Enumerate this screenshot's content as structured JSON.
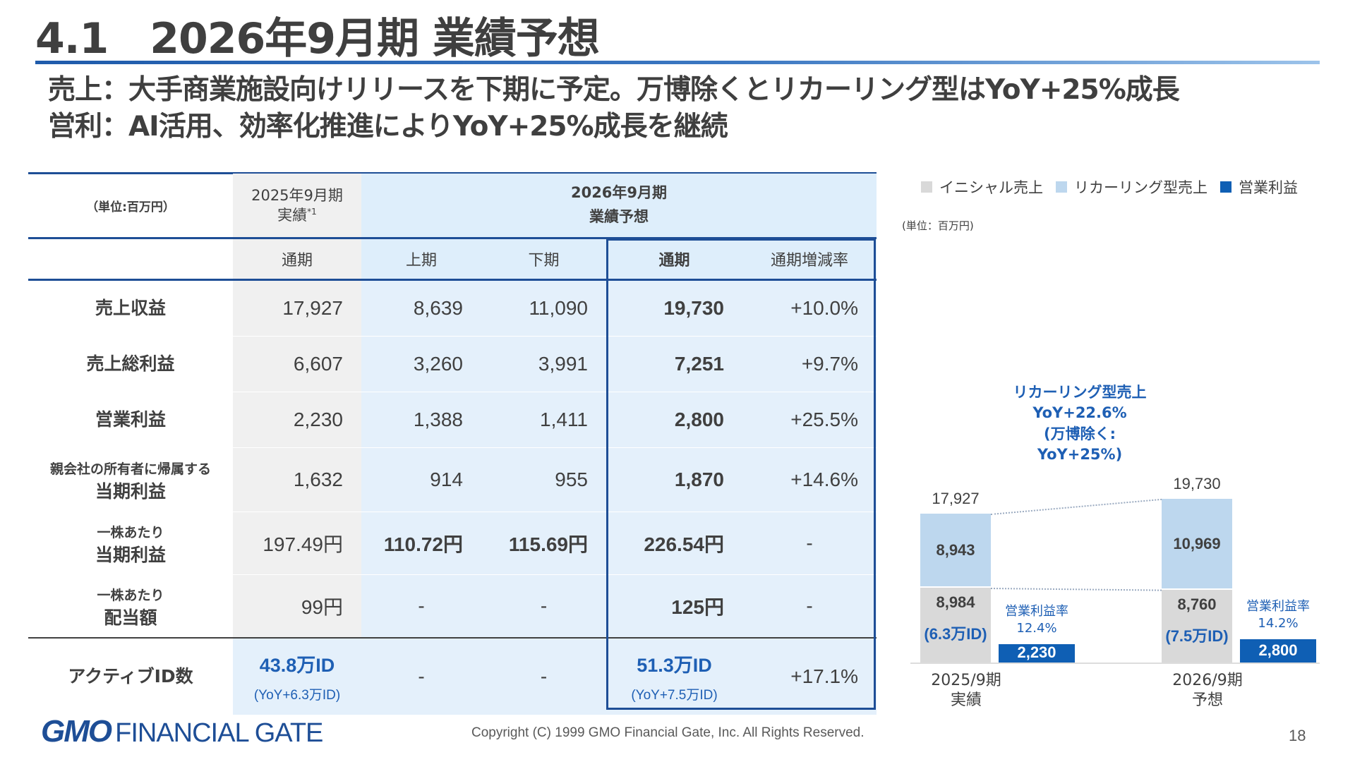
{
  "slide": {
    "title": "4.1　2026年9月期 業績予想",
    "subtitle_sales": "売上：大手商業施設向けリリースを下期に予定。万博除くとリカーリング型はYoY+25%成長",
    "subtitle_profit": "営利：AI活用、効率化推進によりYoY+25%成長を継続"
  },
  "table": {
    "unit_label": "（単位:百万円）",
    "prev_header_line1": "2025年9月期",
    "prev_header_line2": "実績",
    "prev_header_note": "*1",
    "forecast_header_line1": "2026年9月期",
    "forecast_header_line2": "業績予想",
    "subheaders": {
      "prev_full": "通期",
      "h1": "上期",
      "h2": "下期",
      "full": "通期",
      "change": "通期増減率"
    },
    "rows": [
      {
        "label_small": "",
        "label": "売上収益",
        "prev": "17,927",
        "h1": "8,639",
        "h2": "11,090",
        "full": "19,730",
        "change": "+10.0%"
      },
      {
        "label_small": "",
        "label": "売上総利益",
        "prev": "6,607",
        "h1": "3,260",
        "h2": "3,991",
        "full": "7,251",
        "change": "+9.7%"
      },
      {
        "label_small": "",
        "label": "営業利益",
        "prev": "2,230",
        "h1": "1,388",
        "h2": "1,411",
        "full": "2,800",
        "change": "+25.5%"
      },
      {
        "label_small": "親会社の所有者に帰属する",
        "label": "当期利益",
        "prev": "1,632",
        "h1": "914",
        "h2": "955",
        "full": "1,870",
        "change": "+14.6%"
      },
      {
        "label_small": "一株あたり",
        "label": "当期利益",
        "prev": "197.49円",
        "h1": "110.72円",
        "h2": "115.69円",
        "full": "226.54円",
        "change": "-"
      },
      {
        "label_small": "一株あたり",
        "label": "配当額",
        "prev": "99円",
        "h1": "-",
        "h2": "-",
        "full": "125円",
        "change": "-"
      }
    ],
    "active_id": {
      "label": "アクティブID数",
      "prev": "43.8万ID",
      "prev_sub": "(YoY+6.3万ID)",
      "h1": "-",
      "h2": "-",
      "full": "51.3万ID",
      "full_sub": "(YoY+7.5万ID)",
      "change": "+17.1%"
    }
  },
  "legend": {
    "unit": "(単位：百万円)",
    "items": [
      {
        "label": "イニシャル売上",
        "color": "#d9d9d9"
      },
      {
        "label": "リカーリング型売上",
        "color": "#bdd7ee"
      },
      {
        "label": "営業利益",
        "color": "#0f5fb4"
      }
    ]
  },
  "chart_data": {
    "type": "bar",
    "categories": [
      "2025/9期\n実績",
      "2026/9期\n予想"
    ],
    "series": [
      {
        "name": "イニシャル売上",
        "values": [
          8984,
          8760
        ],
        "color": "#d9d9d9"
      },
      {
        "name": "リカーリング型売上",
        "values": [
          8943,
          10969
        ],
        "color": "#bdd7ee"
      },
      {
        "name": "営業利益",
        "values": [
          2230,
          2800
        ],
        "color": "#0f5fb4"
      }
    ],
    "totals": [
      17927,
      19730
    ],
    "totals_labels": [
      "17,927",
      "19,730"
    ],
    "value_labels": {
      "initial": [
        "8,984",
        "8,760"
      ],
      "recurring": [
        "8,943",
        "10,969"
      ],
      "op_profit": [
        "2,230",
        "2,800"
      ]
    },
    "id_labels": [
      "(6.3万ID)",
      "(7.5万ID)"
    ],
    "op_margin_labels": [
      {
        "title": "営業利益率",
        "value": "12.4%"
      },
      {
        "title": "営業利益率",
        "value": "14.2%"
      }
    ],
    "recurring_note": [
      "リカーリング型売上",
      "YoY+22.6%",
      "(万博除く: YoY+25%)"
    ],
    "ylim": [
      0,
      22000
    ]
  },
  "footer": {
    "logo_gmo": "GMO",
    "logo_fg": "FINANCIAL GATE",
    "copyright": "Copyright (C) 1999 GMO Financial Gate, Inc. All Rights Reserved.",
    "page": "18"
  }
}
